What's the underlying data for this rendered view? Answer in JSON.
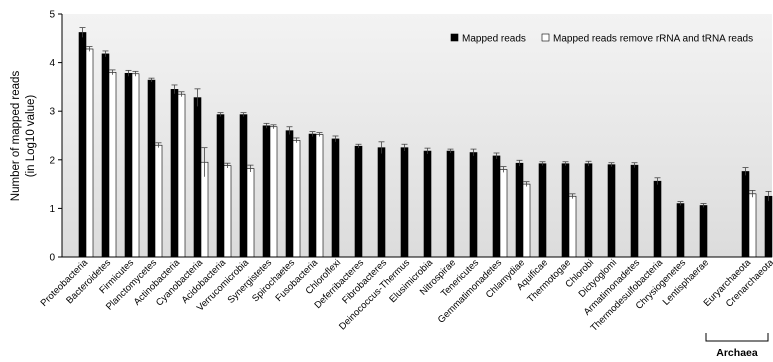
{
  "chart_data": {
    "type": "bar",
    "ylabel_line1": "Number of mapped reads",
    "ylabel_line2": "(in Log10 value)",
    "ylim": [
      0,
      5
    ],
    "yticks": [
      "0",
      "1",
      "2",
      "3",
      "4",
      "5"
    ],
    "grid": false,
    "legend_position": "top-right",
    "categories": [
      "Proteobacteria",
      "Bacteroidetes",
      "Firmicutes",
      "Planctomycetes",
      "Actinobacteria",
      "Cyanobacteria",
      "Acidobacteria",
      "Verrucomicrobia",
      "Synergistetes",
      "Spirochaetes",
      "Fusobacteria",
      "Chloroflexi",
      "Deferribacteres",
      "Fibrobacteres",
      "Deinococcus-Thermus",
      "Elusimicrobia",
      "Nitrospirae",
      "Tenericutes",
      "Gemmatimonadetes",
      "Chlamydiae",
      "Aquificae",
      "Thermotogae",
      "Chlorobi",
      "Dictyoglomi",
      "Armatimonadetes",
      "Thermodesulfobacteria",
      "Chrysiogenetes",
      "Lentisphaerae",
      "Euryarchaeota",
      "Crenarchaeota"
    ],
    "series": [
      {
        "name": "Mapped reads",
        "color": "#000000",
        "values": [
          4.62,
          4.18,
          3.78,
          3.64,
          3.45,
          3.28,
          2.93,
          2.93,
          2.7,
          2.6,
          2.53,
          2.43,
          2.28,
          2.25,
          2.25,
          2.18,
          2.18,
          2.15,
          2.08,
          1.93,
          1.92,
          1.92,
          1.92,
          1.9,
          1.89,
          1.56,
          1.1,
          1.06,
          1.76,
          1.25
        ],
        "errors": [
          0.1,
          0.06,
          0.06,
          0.04,
          0.09,
          0.18,
          0.04,
          0.04,
          0.05,
          0.08,
          0.05,
          0.06,
          0.04,
          0.12,
          0.07,
          0.06,
          0.04,
          0.07,
          0.06,
          0.06,
          0.04,
          0.04,
          0.05,
          0.04,
          0.05,
          0.07,
          0.04,
          0.04,
          0.08,
          0.1
        ]
      },
      {
        "name": "Mapped reads remove rRNA and tRNA reads",
        "color": "#ffffff",
        "values": [
          4.28,
          3.8,
          3.77,
          2.3,
          3.35,
          1.95,
          1.88,
          1.82,
          2.68,
          2.4,
          2.52,
          null,
          null,
          null,
          null,
          null,
          null,
          null,
          1.8,
          1.5,
          null,
          1.25,
          null,
          null,
          null,
          null,
          null,
          null,
          1.3,
          null
        ],
        "errors": [
          0.05,
          0.05,
          0.05,
          0.05,
          0.05,
          0.3,
          0.05,
          0.07,
          0.04,
          0.05,
          0.04,
          null,
          null,
          null,
          null,
          null,
          null,
          null,
          0.06,
          0.05,
          null,
          0.05,
          null,
          null,
          null,
          null,
          null,
          null,
          0.07,
          null
        ]
      }
    ],
    "group_label": "Archaea",
    "group_categories": [
      "Euryarchaeota",
      "Crenarchaeota"
    ]
  }
}
